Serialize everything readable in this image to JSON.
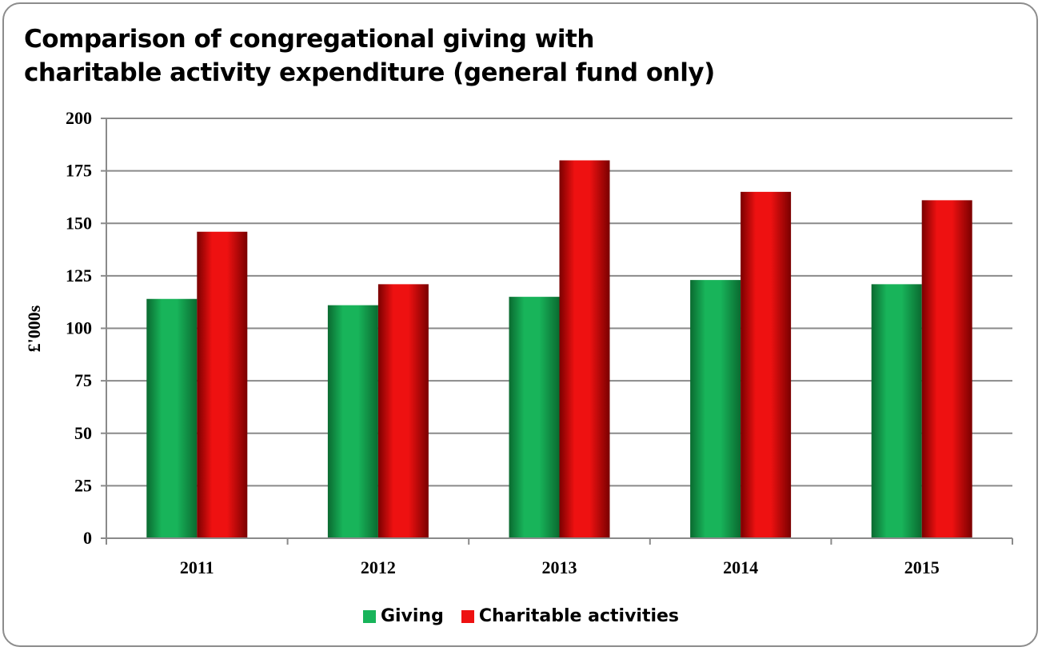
{
  "chart_data": {
    "type": "bar",
    "title": [
      "Comparison of congregational giving with",
      "charitable activity expenditure (general fund only)"
    ],
    "ylabel": "£'000s",
    "xlabel": "",
    "categories": [
      "2011",
      "2012",
      "2013",
      "2014",
      "2015"
    ],
    "series": [
      {
        "name": "Giving",
        "values": [
          114,
          111,
          115,
          123,
          121
        ],
        "color": "#18b45a",
        "color_dark": "#0a6a30"
      },
      {
        "name": "Charitable activities",
        "values": [
          146,
          121,
          180,
          165,
          161
        ],
        "color": "#ee1111",
        "color_dark": "#7a0000"
      }
    ],
    "ylim": [
      0,
      200
    ],
    "yticks": [
      "0",
      "25",
      "50",
      "75",
      "100",
      "125",
      "150",
      "175",
      "200"
    ],
    "grid": true,
    "legend": "bottom"
  }
}
